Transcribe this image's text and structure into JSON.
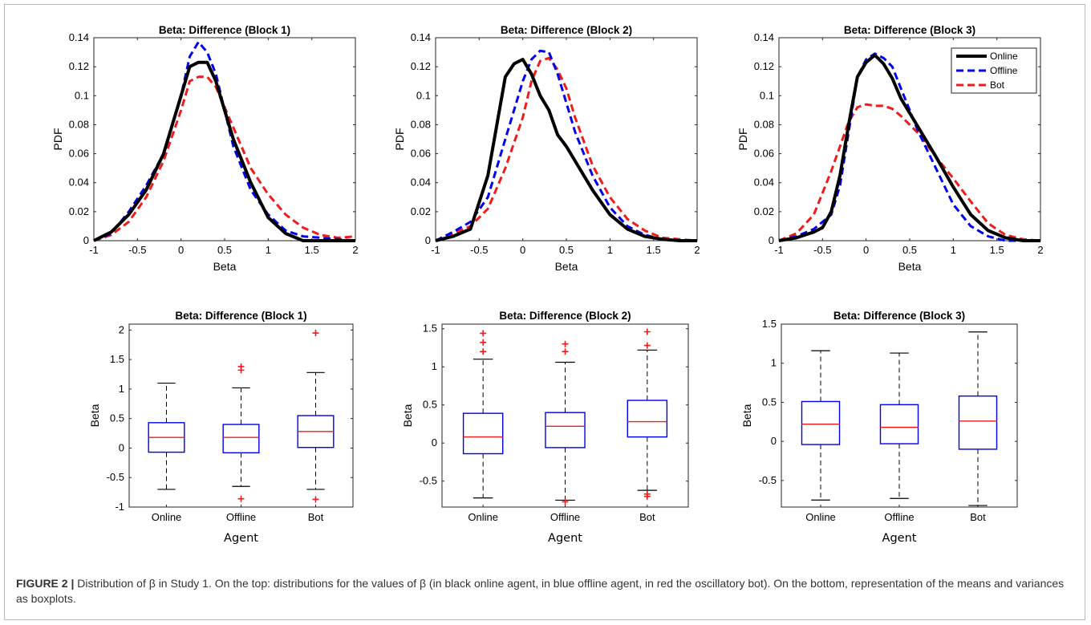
{
  "caption": {
    "label": "FIGURE 2 |",
    "text": "Distribution of β in Study 1. On the top: distributions for the values of β (in black online agent, in blue offline agent, in red the oscillatory bot). On the bottom, representation of the means and variances as boxplots."
  },
  "colors": {
    "online": "#000000",
    "offline": "#0000ee",
    "bot": "#ee1c1c",
    "box": "#0000ee",
    "median": "#ee1c1c",
    "outlier": "#ee1c1c"
  },
  "chart_data": [
    {
      "type": "line",
      "title": "Beta: Difference (Block 1)",
      "xlabel": "Beta",
      "ylabel": "PDF",
      "xlim": [
        -1,
        2
      ],
      "ylim": [
        0,
        0.14
      ],
      "xticks": [
        "-1",
        "-0.5",
        "0",
        "0.5",
        "1",
        "1.5",
        "2"
      ],
      "yticks": [
        "0",
        "0.02",
        "0.04",
        "0.06",
        "0.08",
        "0.1",
        "0.12",
        "0.14"
      ],
      "legend": null,
      "series": [
        {
          "key": "online",
          "x": [
            -1,
            -0.8,
            -0.6,
            -0.4,
            -0.2,
            0,
            0.1,
            0.2,
            0.3,
            0.4,
            0.5,
            0.6,
            0.8,
            1,
            1.2,
            1.4,
            1.6,
            1.8,
            2
          ],
          "y": [
            0,
            0.006,
            0.018,
            0.035,
            0.06,
            0.1,
            0.12,
            0.123,
            0.123,
            0.11,
            0.09,
            0.07,
            0.04,
            0.016,
            0.005,
            0,
            0,
            0,
            0
          ]
        },
        {
          "key": "offline",
          "x": [
            -1,
            -0.8,
            -0.6,
            -0.4,
            -0.2,
            0,
            0.1,
            0.2,
            0.3,
            0.4,
            0.5,
            0.6,
            0.8,
            1,
            1.2,
            1.4,
            1.6,
            1.8,
            2
          ],
          "y": [
            0,
            0.005,
            0.02,
            0.038,
            0.06,
            0.1,
            0.127,
            0.137,
            0.13,
            0.115,
            0.09,
            0.065,
            0.035,
            0.018,
            0.007,
            0.003,
            0.002,
            0.001,
            0
          ]
        },
        {
          "key": "bot",
          "x": [
            -1,
            -0.8,
            -0.6,
            -0.4,
            -0.2,
            0,
            0.1,
            0.2,
            0.3,
            0.4,
            0.5,
            0.6,
            0.8,
            1,
            1.2,
            1.4,
            1.6,
            1.8,
            2
          ],
          "y": [
            0,
            0.004,
            0.013,
            0.03,
            0.055,
            0.09,
            0.11,
            0.113,
            0.113,
            0.106,
            0.092,
            0.078,
            0.05,
            0.032,
            0.018,
            0.009,
            0.004,
            0.002,
            0.003
          ]
        }
      ]
    },
    {
      "type": "line",
      "title": "Beta: Difference (Block 2)",
      "xlabel": "Beta",
      "ylabel": "PDF",
      "xlim": [
        -1,
        2
      ],
      "ylim": [
        0,
        0.14
      ],
      "xticks": [
        "-1",
        "-0.5",
        "0",
        "0.5",
        "1",
        "1.5",
        "2"
      ],
      "yticks": [
        "0",
        "0.02",
        "0.04",
        "0.06",
        "0.08",
        "0.1",
        "0.12",
        "0.14"
      ],
      "legend": null,
      "series": [
        {
          "key": "online",
          "x": [
            -1,
            -0.8,
            -0.6,
            -0.4,
            -0.2,
            -0.1,
            0,
            0.1,
            0.2,
            0.3,
            0.4,
            0.5,
            0.6,
            0.8,
            1,
            1.2,
            1.4,
            1.6,
            1.8,
            2
          ],
          "y": [
            0,
            0.003,
            0.008,
            0.045,
            0.113,
            0.122,
            0.125,
            0.115,
            0.1,
            0.09,
            0.073,
            0.065,
            0.055,
            0.035,
            0.018,
            0.008,
            0.003,
            0.001,
            0,
            0
          ]
        },
        {
          "key": "offline",
          "x": [
            -1,
            -0.8,
            -0.6,
            -0.4,
            -0.2,
            0,
            0.1,
            0.2,
            0.3,
            0.4,
            0.5,
            0.6,
            0.8,
            1,
            1.2,
            1.4,
            1.6,
            1.8,
            2
          ],
          "y": [
            0,
            0.006,
            0.013,
            0.03,
            0.07,
            0.11,
            0.125,
            0.131,
            0.13,
            0.115,
            0.095,
            0.075,
            0.045,
            0.023,
            0.01,
            0.004,
            0.001,
            0,
            0
          ]
        },
        {
          "key": "bot",
          "x": [
            -1,
            -0.8,
            -0.6,
            -0.4,
            -0.2,
            0,
            0.1,
            0.2,
            0.3,
            0.4,
            0.5,
            0.6,
            0.8,
            1,
            1.2,
            1.4,
            1.6,
            1.8,
            2
          ],
          "y": [
            0,
            0.005,
            0.01,
            0.022,
            0.05,
            0.085,
            0.11,
            0.124,
            0.126,
            0.118,
            0.105,
            0.085,
            0.052,
            0.03,
            0.015,
            0.007,
            0.002,
            0.001,
            0
          ]
        }
      ]
    },
    {
      "type": "line",
      "title": "Beta: Difference (Block 3)",
      "xlabel": "Beta",
      "ylabel": "PDF",
      "xlim": [
        -1,
        2
      ],
      "ylim": [
        0,
        0.14
      ],
      "xticks": [
        "-1",
        "-0.5",
        "0",
        "0.5",
        "1",
        "1.5",
        "2"
      ],
      "yticks": [
        "0",
        "0.02",
        "0.04",
        "0.06",
        "0.08",
        "0.1",
        "0.12",
        "0.14"
      ],
      "legend": {
        "position": "top-right",
        "entries": [
          "Online",
          "Offline",
          "Bot"
        ]
      },
      "series": [
        {
          "key": "online",
          "name": "Online",
          "x": [
            -1,
            -0.8,
            -0.6,
            -0.5,
            -0.4,
            -0.3,
            -0.2,
            -0.1,
            0,
            0.1,
            0.2,
            0.3,
            0.4,
            0.6,
            0.8,
            1,
            1.2,
            1.4,
            1.6,
            1.8,
            2
          ],
          "y": [
            0,
            0.002,
            0.006,
            0.009,
            0.02,
            0.045,
            0.08,
            0.113,
            0.123,
            0.128,
            0.122,
            0.112,
            0.098,
            0.078,
            0.058,
            0.037,
            0.018,
            0.007,
            0.002,
            0,
            0
          ]
        },
        {
          "key": "offline",
          "name": "Offline",
          "x": [
            -1,
            -0.8,
            -0.6,
            -0.4,
            -0.3,
            -0.2,
            -0.1,
            0,
            0.1,
            0.2,
            0.3,
            0.4,
            0.6,
            0.8,
            1,
            1.2,
            1.4,
            1.6,
            1.8,
            2
          ],
          "y": [
            0,
            0.003,
            0.008,
            0.018,
            0.038,
            0.075,
            0.113,
            0.125,
            0.129,
            0.126,
            0.12,
            0.105,
            0.075,
            0.05,
            0.025,
            0.01,
            0.003,
            0,
            0,
            0
          ]
        },
        {
          "key": "bot",
          "name": "Bot",
          "x": [
            -1,
            -0.8,
            -0.6,
            -0.4,
            -0.2,
            -0.1,
            0,
            0.1,
            0.2,
            0.3,
            0.4,
            0.6,
            0.8,
            1,
            1.2,
            1.4,
            1.6,
            1.8,
            2
          ],
          "y": [
            0,
            0.005,
            0.018,
            0.048,
            0.082,
            0.092,
            0.094,
            0.093,
            0.093,
            0.091,
            0.086,
            0.074,
            0.058,
            0.043,
            0.027,
            0.012,
            0.004,
            0.001,
            0
          ]
        }
      ]
    },
    {
      "type": "boxplot",
      "title": "Beta: Difference (Block 1)",
      "xlabel": "Agent",
      "ylabel": "Beta",
      "ylim": [
        -1,
        2.1
      ],
      "yticks": [
        -1,
        -0.5,
        0,
        0.5,
        1,
        1.5,
        2
      ],
      "yticklabels": [
        "-1",
        "-0.5",
        "0",
        "0.5",
        "1",
        "1.5",
        "2"
      ],
      "categories": [
        "Online",
        "Offline",
        "Bot"
      ],
      "boxes": [
        {
          "q1": -0.07,
          "median": 0.18,
          "q3": 0.43,
          "whisker_low": -0.7,
          "whisker_high": 1.1,
          "outliers": []
        },
        {
          "q1": -0.08,
          "median": 0.18,
          "q3": 0.4,
          "whisker_low": -0.65,
          "whisker_high": 1.02,
          "outliers": [
            1.32,
            1.38,
            -0.86
          ]
        },
        {
          "q1": 0.01,
          "median": 0.28,
          "q3": 0.55,
          "whisker_low": -0.7,
          "whisker_high": 1.28,
          "outliers": [
            1.95,
            -0.87
          ]
        }
      ]
    },
    {
      "type": "boxplot",
      "title": "Beta: Difference (Block 2)",
      "xlabel": "Agent",
      "ylabel": "Beta",
      "ylim": [
        -0.84,
        1.56
      ],
      "yticks": [
        -0.5,
        0,
        0.5,
        1,
        1.5
      ],
      "yticklabels": [
        "-0.5",
        "0",
        "0.5",
        "1",
        "1.5"
      ],
      "categories": [
        "Online",
        "Offline",
        "Bot"
      ],
      "boxes": [
        {
          "q1": -0.14,
          "median": 0.08,
          "q3": 0.39,
          "whisker_low": -0.72,
          "whisker_high": 1.1,
          "outliers": [
            1.2,
            1.32,
            1.44
          ]
        },
        {
          "q1": -0.06,
          "median": 0.22,
          "q3": 0.4,
          "whisker_low": -0.75,
          "whisker_high": 1.06,
          "outliers": [
            1.2,
            1.3,
            -0.77
          ]
        },
        {
          "q1": 0.08,
          "median": 0.28,
          "q3": 0.56,
          "whisker_low": -0.62,
          "whisker_high": 1.22,
          "outliers": [
            1.28,
            1.46,
            -0.67,
            -0.7
          ]
        }
      ]
    },
    {
      "type": "boxplot",
      "title": "Beta: Difference (Block 3)",
      "xlabel": "Agent",
      "ylabel": "Beta",
      "ylim": [
        -0.84,
        1.5
      ],
      "yticks": [
        -0.5,
        0,
        0.5,
        1,
        1.5
      ],
      "yticklabels": [
        "-0.5",
        "0",
        "0.5",
        "1",
        "1.5"
      ],
      "categories": [
        "Online",
        "Offline",
        "Bot"
      ],
      "boxes": [
        {
          "q1": -0.04,
          "median": 0.22,
          "q3": 0.51,
          "whisker_low": -0.75,
          "whisker_high": 1.16,
          "outliers": []
        },
        {
          "q1": -0.03,
          "median": 0.18,
          "q3": 0.47,
          "whisker_low": -0.73,
          "whisker_high": 1.13,
          "outliers": []
        },
        {
          "q1": -0.1,
          "median": 0.26,
          "q3": 0.58,
          "whisker_low": -0.82,
          "whisker_high": 1.4,
          "outliers": []
        }
      ]
    }
  ]
}
